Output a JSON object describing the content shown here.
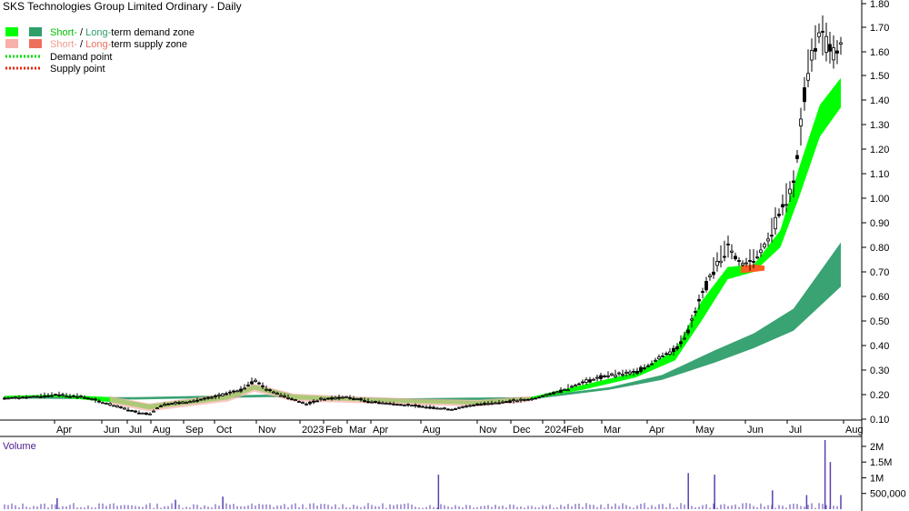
{
  "chart_data": {
    "type": "candlestick",
    "title": "SKS Technologies Group Limited Ordinary - Daily",
    "legend": {
      "demand_zone": {
        "short": "Short-",
        "sep": " / ",
        "long": "Long-",
        "rest": "term demand zone"
      },
      "supply_zone": {
        "short": "Short-",
        "sep": " / ",
        "long": "Long-",
        "rest": "term supply zone"
      },
      "demand_point": "Demand point",
      "supply_point": "Supply point"
    },
    "x_tick_labels": [
      "Apr",
      "Jun",
      "Jul",
      "Aug",
      "Sep",
      "Oct",
      "Nov",
      "2023",
      "Feb",
      "Mar",
      "Apr",
      "Aug",
      "Nov",
      "Dec",
      "2024",
      "Feb",
      "Mar",
      "Apr",
      "May",
      "Jun",
      "Jul",
      "Aug"
    ],
    "price_axis": {
      "ticks": [
        "0.10",
        "0.20",
        "0.30",
        "0.40",
        "0.50",
        "0.60",
        "0.70",
        "0.80",
        "0.90",
        "1.00",
        "1.10",
        "1.20",
        "1.30",
        "1.40",
        "1.50",
        "1.60",
        "1.70",
        "1.80"
      ],
      "ylim": [
        0.07,
        1.8
      ]
    },
    "price_series": [
      {
        "m": 0,
        "p": 0.185
      },
      {
        "m": 1,
        "p": 0.19
      },
      {
        "m": 2,
        "p": 0.2
      },
      {
        "m": 3,
        "p": 0.19
      },
      {
        "m": 4,
        "p": 0.16
      },
      {
        "m": 5,
        "p": 0.13
      },
      {
        "m": 5.5,
        "p": 0.12
      },
      {
        "m": 6,
        "p": 0.16
      },
      {
        "m": 7,
        "p": 0.17
      },
      {
        "m": 8,
        "p": 0.19
      },
      {
        "m": 9,
        "p": 0.22
      },
      {
        "m": 9.5,
        "p": 0.26
      },
      {
        "m": 10,
        "p": 0.22
      },
      {
        "m": 11,
        "p": 0.18
      },
      {
        "m": 11.5,
        "p": 0.16
      },
      {
        "m": 12,
        "p": 0.18
      },
      {
        "m": 13,
        "p": 0.19
      },
      {
        "m": 14,
        "p": 0.17
      },
      {
        "m": 15,
        "p": 0.16
      },
      {
        "m": 16,
        "p": 0.15
      },
      {
        "m": 17,
        "p": 0.14
      },
      {
        "m": 18,
        "p": 0.16
      },
      {
        "m": 19,
        "p": 0.17
      },
      {
        "m": 20,
        "p": 0.18
      },
      {
        "m": 21,
        "p": 0.21
      },
      {
        "m": 22,
        "p": 0.25
      },
      {
        "m": 23,
        "p": 0.28
      },
      {
        "m": 24,
        "p": 0.29
      },
      {
        "m": 24.5,
        "p": 0.32
      },
      {
        "m": 25,
        "p": 0.36
      },
      {
        "m": 25.5,
        "p": 0.38
      },
      {
        "m": 26,
        "p": 0.46
      },
      {
        "m": 26.5,
        "p": 0.6
      },
      {
        "m": 27,
        "p": 0.72
      },
      {
        "m": 27.5,
        "p": 0.8
      },
      {
        "m": 28,
        "p": 0.73
      },
      {
        "m": 28.5,
        "p": 0.75
      },
      {
        "m": 29,
        "p": 0.82
      },
      {
        "m": 29.5,
        "p": 0.95
      },
      {
        "m": 30,
        "p": 1.05
      },
      {
        "m": 30.3,
        "p": 1.3
      },
      {
        "m": 30.5,
        "p": 1.5
      },
      {
        "m": 30.8,
        "p": 1.62
      },
      {
        "m": 31,
        "p": 1.68
      },
      {
        "m": 31.3,
        "p": 1.62
      },
      {
        "m": 31.6,
        "p": 1.58
      },
      {
        "m": 31.8,
        "p": 1.62
      }
    ],
    "short_term_zone": [
      {
        "m": 0,
        "lo": 0.185,
        "hi": 0.195
      },
      {
        "m": 2,
        "lo": 0.19,
        "hi": 0.2
      },
      {
        "m": 4,
        "lo": 0.17,
        "hi": 0.19
      },
      {
        "m": 5.5,
        "lo": 0.14,
        "hi": 0.16
      },
      {
        "m": 7,
        "lo": 0.16,
        "hi": 0.18
      },
      {
        "m": 8.5,
        "lo": 0.18,
        "hi": 0.2
      },
      {
        "m": 9.5,
        "lo": 0.22,
        "hi": 0.24
      },
      {
        "m": 11,
        "lo": 0.18,
        "hi": 0.2
      },
      {
        "m": 13,
        "lo": 0.175,
        "hi": 0.19
      },
      {
        "m": 15.5,
        "lo": 0.165,
        "hi": 0.18
      },
      {
        "m": 18,
        "lo": 0.16,
        "hi": 0.175
      },
      {
        "m": 20,
        "lo": 0.18,
        "hi": 0.19
      },
      {
        "m": 22,
        "lo": 0.22,
        "hi": 0.24
      },
      {
        "m": 24,
        "lo": 0.27,
        "hi": 0.29
      },
      {
        "m": 25.5,
        "lo": 0.34,
        "hi": 0.38
      },
      {
        "m": 26.5,
        "lo": 0.5,
        "hi": 0.58
      },
      {
        "m": 27.5,
        "lo": 0.67,
        "hi": 0.72
      },
      {
        "m": 28.5,
        "lo": 0.7,
        "hi": 0.73
      },
      {
        "m": 29.5,
        "lo": 0.8,
        "hi": 0.87
      },
      {
        "m": 30.2,
        "lo": 1.0,
        "hi": 1.12
      },
      {
        "m": 31,
        "lo": 1.25,
        "hi": 1.38
      },
      {
        "m": 31.8,
        "lo": 1.37,
        "hi": 1.49
      }
    ],
    "long_term_zone": [
      {
        "m": 0,
        "lo": 0.185,
        "hi": 0.19
      },
      {
        "m": 5,
        "lo": 0.18,
        "hi": 0.19
      },
      {
        "m": 10,
        "lo": 0.19,
        "hi": 0.2
      },
      {
        "m": 15,
        "lo": 0.175,
        "hi": 0.185
      },
      {
        "m": 20,
        "lo": 0.18,
        "hi": 0.19
      },
      {
        "m": 23,
        "lo": 0.22,
        "hi": 0.23
      },
      {
        "m": 25,
        "lo": 0.26,
        "hi": 0.28
      },
      {
        "m": 27,
        "lo": 0.33,
        "hi": 0.38
      },
      {
        "m": 28.5,
        "lo": 0.39,
        "hi": 0.45
      },
      {
        "m": 30,
        "lo": 0.46,
        "hi": 0.55
      },
      {
        "m": 31,
        "lo": 0.56,
        "hi": 0.7
      },
      {
        "m": 31.8,
        "lo": 0.64,
        "hi": 0.82
      }
    ],
    "volume_axis": {
      "ticks": [
        "500,000",
        "1M",
        "1.5M",
        "2M"
      ],
      "ylim": [
        0,
        2200000
      ]
    },
    "volume_title": "Volume",
    "volume_spikes": [
      {
        "m": 2,
        "v": 350000
      },
      {
        "m": 6.5,
        "v": 300000
      },
      {
        "m": 8.3,
        "v": 400000
      },
      {
        "m": 16.5,
        "v": 1100000
      },
      {
        "m": 26,
        "v": 1150000
      },
      {
        "m": 27,
        "v": 1100000
      },
      {
        "m": 29.2,
        "v": 600000
      },
      {
        "m": 30.5,
        "v": 450000
      },
      {
        "m": 31.2,
        "v": 2200000
      },
      {
        "m": 31.4,
        "v": 1500000
      },
      {
        "m": 31.8,
        "v": 450000
      }
    ],
    "colors": {
      "short_demand": "#00ff00",
      "long_demand": "#2e9e6b",
      "short_supply": "#f7b0aa",
      "long_supply": "#ee6f5e",
      "supply_fill": "#ff5c1f",
      "volume_bar": "#5b3fb0",
      "grid": "#dddddd"
    }
  }
}
